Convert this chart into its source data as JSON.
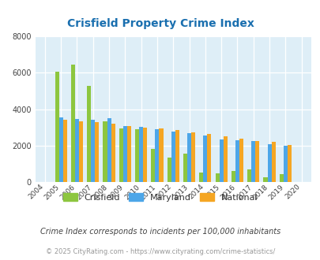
{
  "title": "Crisfield Property Crime Index",
  "title_color": "#1a6faf",
  "years": [
    2004,
    2005,
    2006,
    2007,
    2008,
    2009,
    2010,
    2011,
    2012,
    2013,
    2014,
    2015,
    2016,
    2017,
    2018,
    2019,
    2020
  ],
  "crisfield": [
    0,
    6050,
    6450,
    5270,
    3350,
    2950,
    2900,
    1800,
    1350,
    1550,
    530,
    460,
    620,
    680,
    280,
    420,
    0
  ],
  "maryland": [
    0,
    3550,
    3450,
    3400,
    3500,
    3080,
    3050,
    2900,
    2750,
    2680,
    2550,
    2350,
    2300,
    2230,
    2070,
    2010,
    0
  ],
  "national": [
    0,
    3430,
    3340,
    3310,
    3210,
    3060,
    2990,
    2940,
    2870,
    2740,
    2640,
    2490,
    2380,
    2260,
    2200,
    2040,
    0
  ],
  "crisfield_color": "#8dc63f",
  "maryland_color": "#4da6e8",
  "national_color": "#f5a623",
  "bg_color": "#deeef7",
  "ylim": [
    0,
    8000
  ],
  "yticks": [
    0,
    2000,
    4000,
    6000,
    8000
  ],
  "legend_labels": [
    "Crisfield",
    "Maryland",
    "National"
  ],
  "footnote1": "Crime Index corresponds to incidents per 100,000 inhabitants",
  "footnote2": "© 2025 CityRating.com - https://www.cityrating.com/crime-statistics/",
  "footnote1_color": "#444444",
  "footnote2_color": "#999999",
  "bar_width": 0.25,
  "figsize": [
    4.06,
    3.3
  ],
  "dpi": 100
}
